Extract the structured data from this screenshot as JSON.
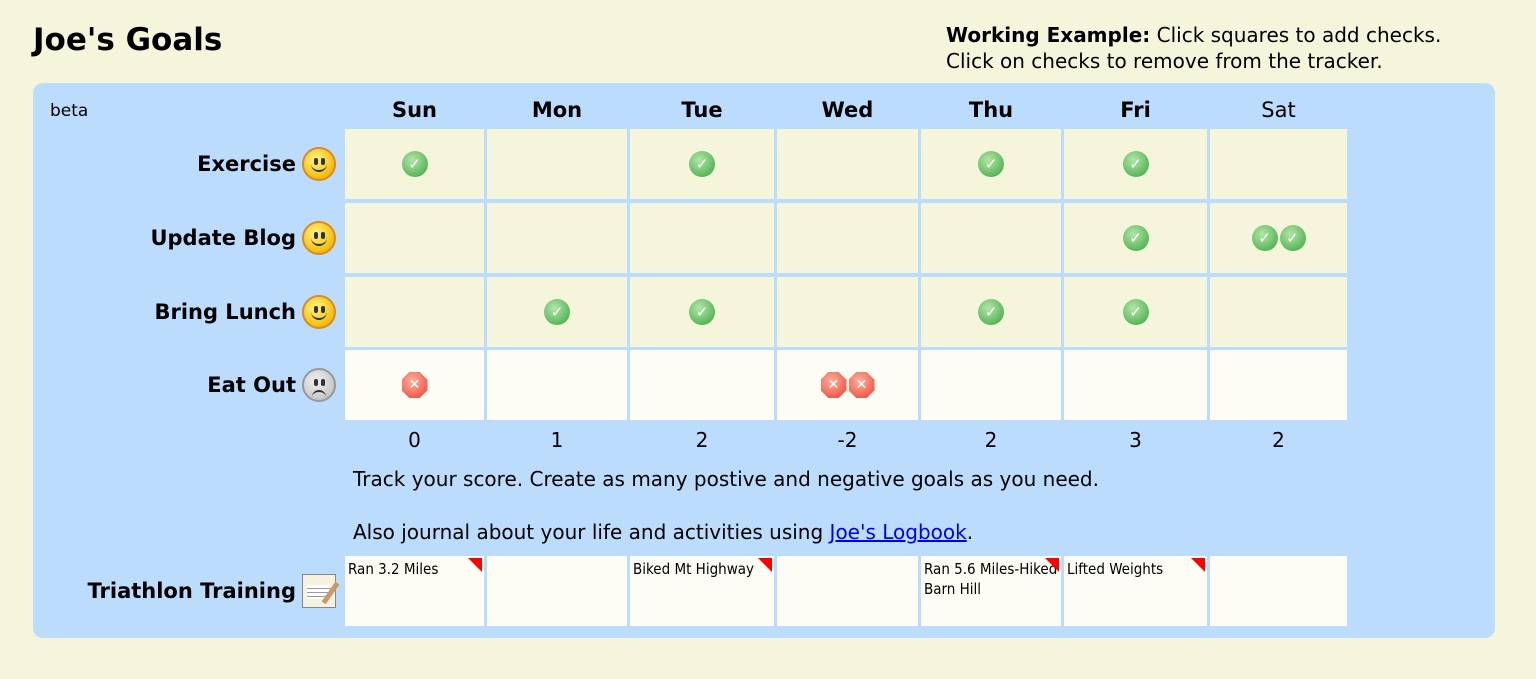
{
  "title": "Joe's Goals",
  "example": {
    "bold": "Working Example:",
    "line1": " Click squares to add checks.",
    "line2": "Click on checks to remove from the tracker."
  },
  "beta": "beta",
  "days": [
    {
      "label": "Sun",
      "bold": true
    },
    {
      "label": "Mon",
      "bold": true
    },
    {
      "label": "Tue",
      "bold": true
    },
    {
      "label": "Wed",
      "bold": true
    },
    {
      "label": "Thu",
      "bold": true
    },
    {
      "label": "Fri",
      "bold": true
    },
    {
      "label": "Sat",
      "bold": false
    }
  ],
  "goals": [
    {
      "label": "Exercise",
      "type": "positive",
      "icon": "smiley-happy-icon",
      "counts": [
        1,
        0,
        1,
        0,
        1,
        1,
        0
      ]
    },
    {
      "label": "Update Blog",
      "type": "positive",
      "icon": "smiley-happy-icon",
      "counts": [
        0,
        0,
        0,
        0,
        0,
        1,
        2
      ]
    },
    {
      "label": "Bring Lunch",
      "type": "positive",
      "icon": "smiley-happy-icon",
      "counts": [
        0,
        1,
        1,
        0,
        1,
        1,
        0
      ]
    },
    {
      "label": "Eat Out",
      "type": "negative",
      "icon": "smiley-sad-icon",
      "counts": [
        1,
        0,
        0,
        2,
        0,
        0,
        0
      ]
    }
  ],
  "scores": [
    "0",
    "1",
    "2",
    "-2",
    "2",
    "3",
    "2"
  ],
  "info": {
    "line1": "Track your score. Create as many postive and negative goals as you need.",
    "line2_prefix": "Also journal about your life and activities using ",
    "link": "Joe's Logbook",
    "line2_suffix": "."
  },
  "journal": {
    "label": "Triathlon Training",
    "icon": "notepad-icon",
    "notes": [
      "Ran 3.2 Miles",
      "",
      "Biked Mt Highway",
      "",
      "Ran 5.6 Miles-Hiked Barn Hill",
      "Lifted Weights",
      ""
    ]
  },
  "colors": {
    "background": "#f5f5dc",
    "panel": "#bbdcfc",
    "positive_cell": "#f5f5dc",
    "negative_cell": "#fdfdf6",
    "check": "#5cb85c",
    "cross": "#f0604e",
    "link": "#0000ee"
  }
}
